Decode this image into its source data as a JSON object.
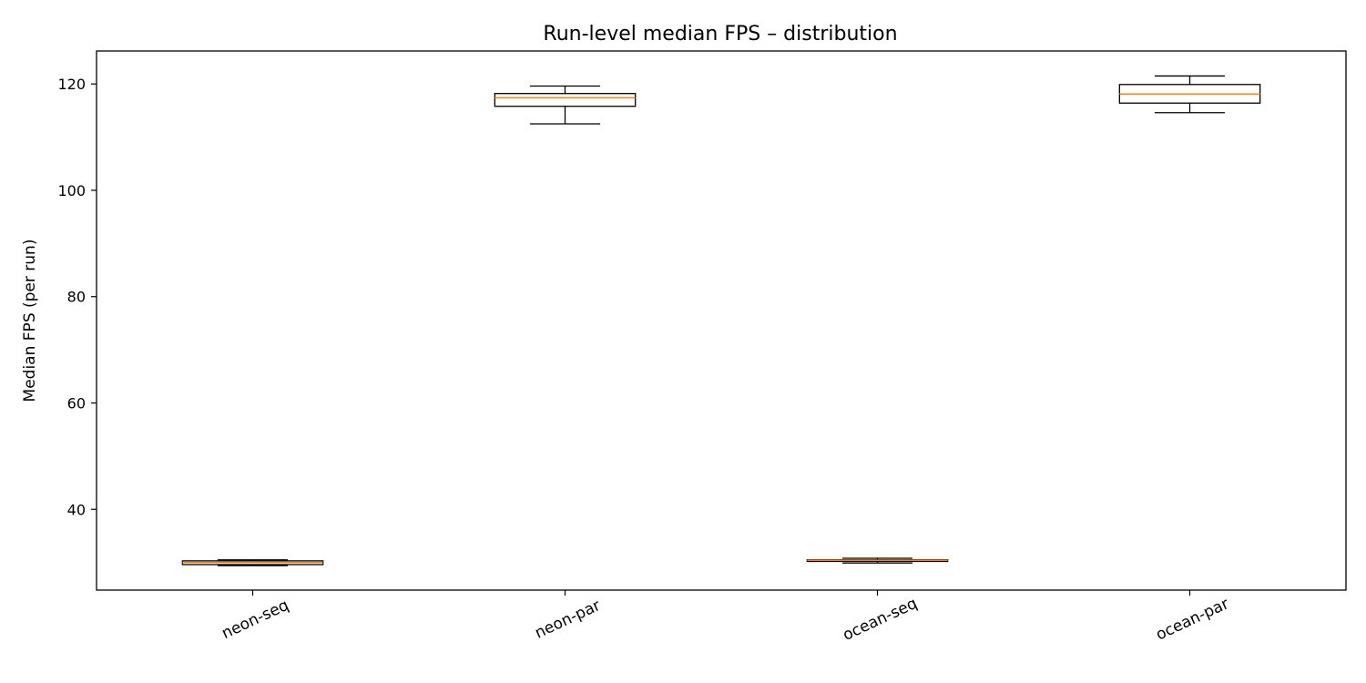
{
  "chart_data": {
    "type": "boxplot",
    "title": "Run-level median FPS – distribution",
    "xlabel": "",
    "ylabel": "Median FPS (per run)",
    "ylim": [
      24.8,
      126.2
    ],
    "yticks": [
      40,
      60,
      80,
      100,
      120
    ],
    "grid": false,
    "colors": {
      "box": "#000000",
      "median": "#ff7f0e"
    },
    "categories": [
      "neon-seq",
      "neon-par",
      "ocean-seq",
      "ocean-par"
    ],
    "boxes": [
      {
        "label": "neon-seq",
        "whisker_low": 29.4,
        "q1": 29.6,
        "median": 30.0,
        "q3": 30.3,
        "whisker_high": 30.5
      },
      {
        "label": "neon-par",
        "whisker_low": 112.5,
        "q1": 115.8,
        "median": 117.4,
        "q3": 118.2,
        "whisker_high": 119.6
      },
      {
        "label": "ocean-seq",
        "whisker_low": 29.9,
        "q1": 30.2,
        "median": 30.4,
        "q3": 30.5,
        "whisker_high": 30.8
      },
      {
        "label": "ocean-par",
        "whisker_low": 114.6,
        "q1": 116.4,
        "median": 118.1,
        "q3": 119.9,
        "whisker_high": 121.5
      }
    ]
  }
}
